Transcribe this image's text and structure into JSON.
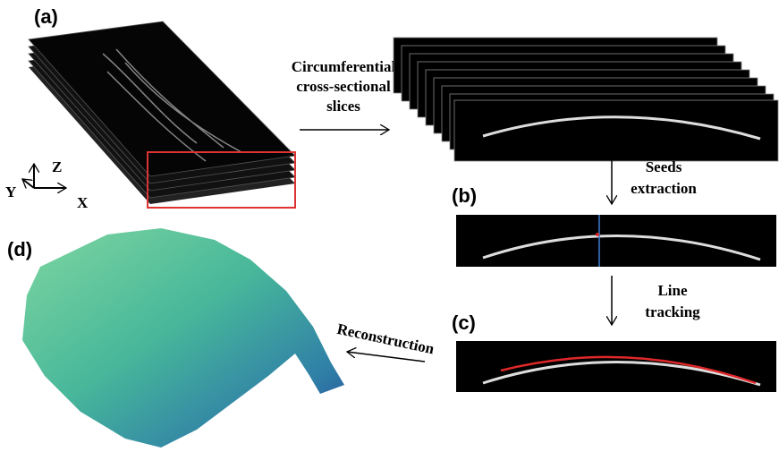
{
  "panels": {
    "a": "(a)",
    "b": "(b)",
    "c": "(c)",
    "d": "(d)"
  },
  "steps": {
    "slicing": [
      "Circumferential",
      "cross-sectional",
      "slices"
    ],
    "seeds": [
      "Seeds",
      "extraction"
    ],
    "tracking": [
      "Line",
      "tracking"
    ],
    "reconstruction": "Reconstruction"
  },
  "axes": {
    "z": "Z",
    "y": "Y",
    "x": "X"
  }
}
